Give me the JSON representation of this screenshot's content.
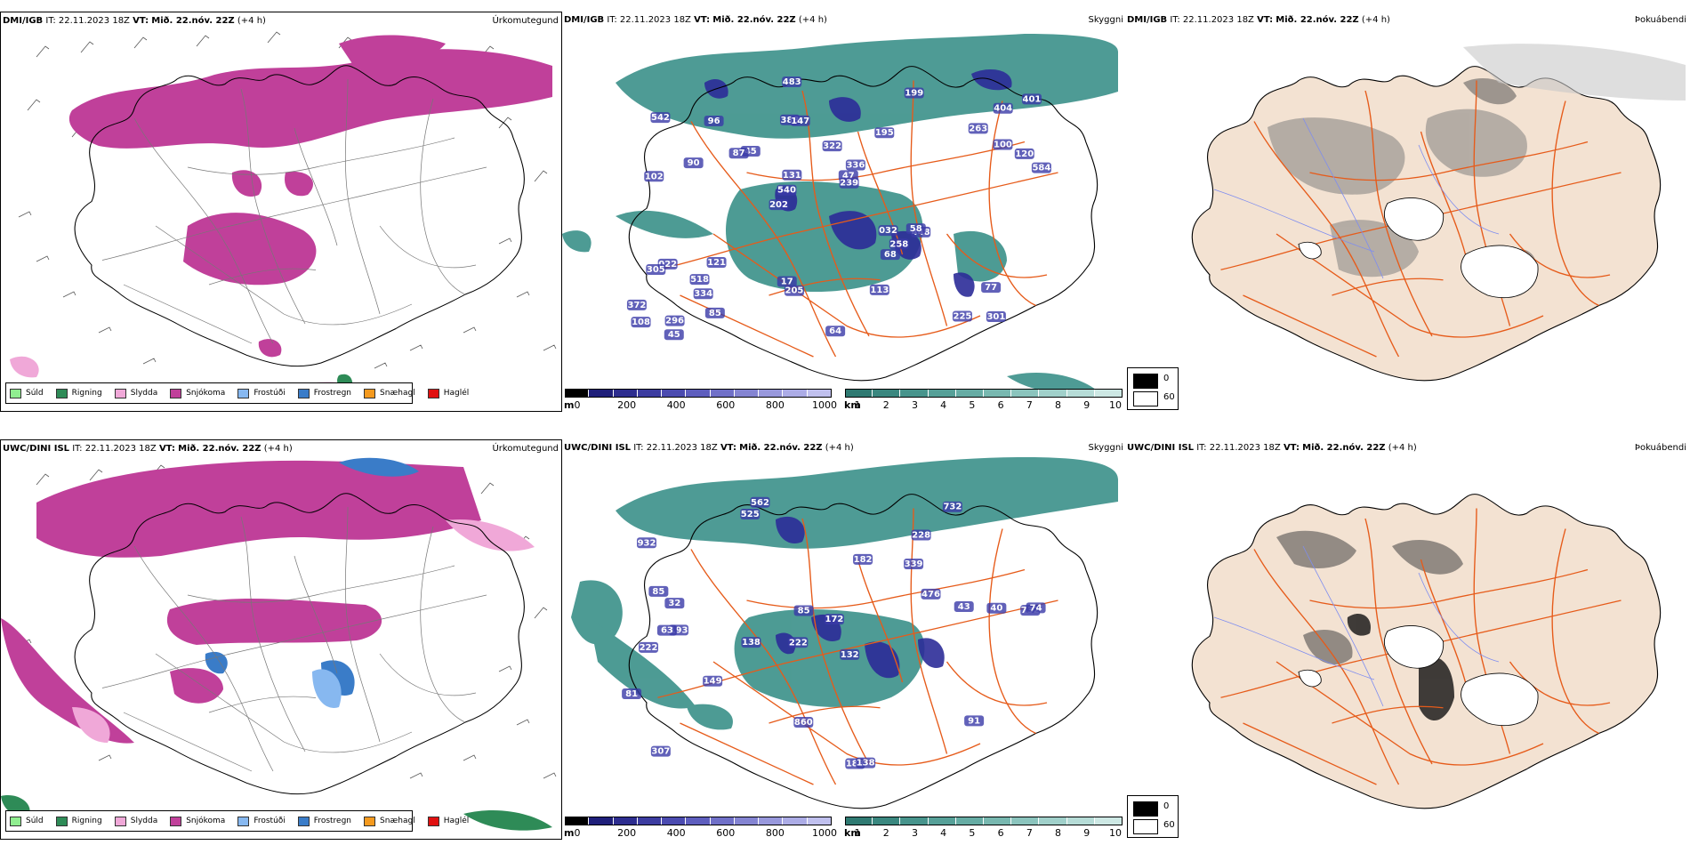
{
  "rows": [
    {
      "model": "DMI/IGB",
      "it_label": "IT:",
      "it": "22.11.2023 18Z",
      "vt_label": "VT:",
      "vt": "Mið. 22.nóv. 22Z",
      "lead": "(+4 h)"
    },
    {
      "model": "UWC/DINI ISL",
      "it_label": "IT:",
      "it": "22.11.2023 18Z",
      "vt_label": "VT:",
      "vt": "Mið. 22.nóv. 22Z",
      "lead": "(+4 h)"
    }
  ],
  "panel_titles": {
    "precip": "Úrkomutegund",
    "visibility": "Skyggni",
    "fog": "Þokuábendi"
  },
  "precip_legend": [
    {
      "label": "Súld",
      "color": "#90ee90"
    },
    {
      "label": "Rigning",
      "color": "#2e8b57"
    },
    {
      "label": "Slydda",
      "color": "#f0a8d8"
    },
    {
      "label": "Snjókoma",
      "color": "#c0409a"
    },
    {
      "label": "Frostúði",
      "color": "#87b8f0"
    },
    {
      "label": "Frostregn",
      "color": "#3a7cc8"
    },
    {
      "label": "Snæhagl",
      "color": "#f59a1e"
    },
    {
      "label": "Haglél",
      "color": "#e01010"
    }
  ],
  "vis_bar_m": {
    "unit": "m",
    "ticks": [
      "0",
      "200",
      "400",
      "600",
      "800",
      "1000"
    ],
    "colors": [
      "#000000",
      "#1f1f7a",
      "#2d2d8f",
      "#3c3ca0",
      "#4b4bb0",
      "#5e5ebe",
      "#7070c8",
      "#8484d2",
      "#9898dc",
      "#acacE6",
      "#c0c0ee"
    ]
  },
  "vis_bar_km": {
    "unit": "km",
    "ticks": [
      "1",
      "2",
      "3",
      "4",
      "5",
      "6",
      "7",
      "8",
      "9",
      "10"
    ],
    "colors": [
      "#2f7a72",
      "#3a877f",
      "#47948c",
      "#56a098",
      "#66aca4",
      "#78b8b0",
      "#8bc4bd",
      "#a0d0ca",
      "#b6dcd7",
      "#cde8e4"
    ]
  },
  "fog_legend": [
    {
      "label": "0",
      "color": "#000000"
    },
    {
      "label": "60",
      "color": "#ffffff"
    }
  ],
  "vis_labels_top": [
    "301",
    "102",
    "404",
    "202",
    "195",
    "296",
    "388",
    "322",
    "022",
    "45",
    "372",
    "334",
    "147",
    "336",
    "448",
    "542",
    "483",
    "584",
    "032",
    "100",
    "540",
    "17",
    "131",
    "96",
    "199",
    "121",
    "225",
    "77",
    "58",
    "64",
    "87",
    "90",
    "68",
    "85",
    "120",
    "47",
    "108",
    "205",
    "239",
    "305",
    "263",
    "401",
    "258",
    "113",
    "518",
    "45"
  ],
  "vis_labels_bot": [
    "562",
    "228",
    "732",
    "222",
    "132",
    "193",
    "932",
    "339",
    "222",
    "182",
    "172",
    "307",
    "525",
    "138",
    "188",
    "138",
    "860",
    "732",
    "476",
    "149",
    "32",
    "63",
    "74",
    "40",
    "81",
    "85",
    "85",
    "43",
    "91"
  ],
  "colors": {
    "land": "#f3e2d2",
    "road": "#e65b1a",
    "coast": "#000000",
    "river": "#7d8cf0",
    "precip_snow": "#c0409a",
    "vis_teal": "#2f8a82",
    "vis_blue": "#2c2c98"
  }
}
